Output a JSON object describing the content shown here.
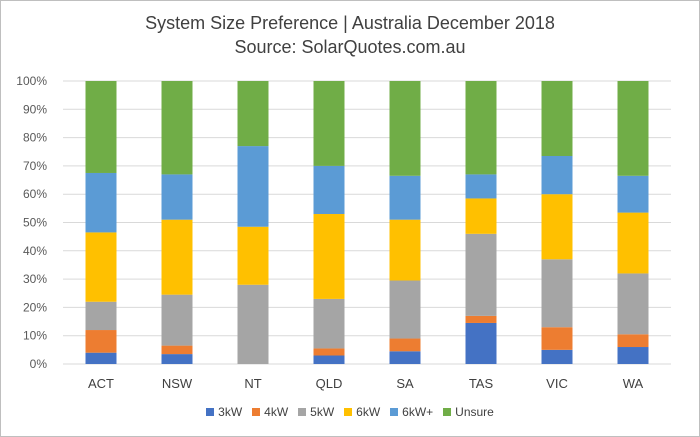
{
  "chart_data": {
    "type": "bar",
    "stacked": true,
    "title": "System Size Preference  | Australia December 2018",
    "subtitle": "Source: SolarQuotes.com.au",
    "categories": [
      "ACT",
      "NSW",
      "NT",
      "QLD",
      "SA",
      "TAS",
      "VIC",
      "WA"
    ],
    "ylim": [
      0,
      100
    ],
    "yticks": [
      "0%",
      "10%",
      "20%",
      "30%",
      "40%",
      "50%",
      "60%",
      "70%",
      "80%",
      "90%",
      "100%"
    ],
    "grid": true,
    "legend_position": "bottom",
    "series": [
      {
        "name": "3kW",
        "color": "#4472c4",
        "values": [
          4,
          3.5,
          0,
          3,
          4.5,
          14.5,
          5,
          6
        ]
      },
      {
        "name": "4kW",
        "color": "#ed7d31",
        "values": [
          8,
          3,
          0,
          2.5,
          4.5,
          2.5,
          8,
          4.5
        ]
      },
      {
        "name": "5kW",
        "color": "#a5a5a5",
        "values": [
          10,
          18,
          28,
          17.5,
          20.5,
          29,
          24,
          21.5
        ]
      },
      {
        "name": "6kW",
        "color": "#ffc000",
        "values": [
          24.5,
          26.5,
          20.5,
          30,
          21.5,
          12.5,
          23,
          21.5
        ]
      },
      {
        "name": "6kW+",
        "color": "#5b9bd5",
        "values": [
          21,
          16,
          28.5,
          17,
          15.5,
          8.5,
          13.5,
          13
        ]
      },
      {
        "name": "Unsure",
        "color": "#70ad47",
        "values": [
          32.5,
          33,
          23,
          30,
          33.5,
          33,
          26.5,
          33.5
        ]
      }
    ]
  }
}
